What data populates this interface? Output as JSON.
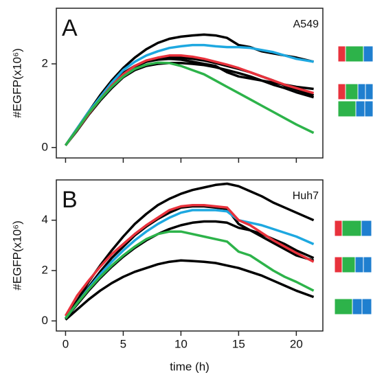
{
  "chart_data": [
    {
      "type": "line",
      "panel_label": "A",
      "title": "A549",
      "ylabel": "#EGFP(x10⁶)",
      "x": [
        0,
        1,
        2,
        3,
        4,
        5,
        6,
        7,
        8,
        9,
        10,
        11,
        12,
        13,
        14,
        15,
        16,
        17,
        18,
        19,
        20,
        21.5
      ],
      "xlim": [
        -0.8,
        22.3
      ],
      "ylim": [
        -0.25,
        3.33
      ],
      "xticks": [
        0,
        5,
        10,
        15,
        20
      ],
      "xtick_labels": false,
      "yticks": [
        0,
        2
      ],
      "series": [
        {
          "color": "#000000",
          "values": [
            0.05,
            0.45,
            0.85,
            1.25,
            1.6,
            1.9,
            2.15,
            2.35,
            2.5,
            2.6,
            2.65,
            2.68,
            2.7,
            2.68,
            2.62,
            2.45,
            2.4,
            2.3,
            2.25,
            2.2,
            2.15,
            2.05
          ]
        },
        {
          "color": "#000000",
          "values": [
            0.05,
            0.42,
            0.8,
            1.15,
            1.48,
            1.75,
            1.93,
            2.05,
            2.12,
            2.15,
            2.15,
            2.12,
            2.08,
            2.02,
            1.95,
            1.88,
            1.8,
            1.7,
            1.6,
            1.48,
            1.38,
            1.25
          ]
        },
        {
          "color": "#000000",
          "values": [
            0.05,
            0.45,
            0.85,
            1.2,
            1.52,
            1.78,
            1.95,
            2.05,
            2.1,
            2.12,
            2.1,
            2.05,
            2.0,
            1.95,
            1.8,
            1.7,
            1.65,
            1.6,
            1.55,
            1.5,
            1.45,
            1.4
          ]
        },
        {
          "color": "#000000",
          "values": [
            0.05,
            0.4,
            0.78,
            1.12,
            1.42,
            1.68,
            1.85,
            1.95,
            2.0,
            2.02,
            2.02,
            2.0,
            1.97,
            1.92,
            1.85,
            1.78,
            1.7,
            1.6,
            1.5,
            1.42,
            1.32,
            1.2
          ]
        },
        {
          "color": "#1ea8e0",
          "values": [
            0.05,
            0.45,
            0.85,
            1.2,
            1.55,
            1.85,
            2.05,
            2.2,
            2.3,
            2.38,
            2.42,
            2.45,
            2.45,
            2.42,
            2.4,
            2.4,
            2.38,
            2.33,
            2.28,
            2.2,
            2.12,
            2.05
          ]
        },
        {
          "color": "#e8323c",
          "values": [
            0.05,
            0.42,
            0.8,
            1.15,
            1.48,
            1.75,
            1.95,
            2.08,
            2.15,
            2.2,
            2.2,
            2.17,
            2.12,
            2.05,
            1.98,
            1.9,
            1.8,
            1.7,
            1.6,
            1.5,
            1.42,
            1.3
          ]
        },
        {
          "color": "#2db34a",
          "values": [
            0.05,
            0.43,
            0.82,
            1.15,
            1.45,
            1.7,
            1.88,
            1.98,
            2.03,
            2.02,
            1.95,
            1.85,
            1.75,
            1.6,
            1.45,
            1.3,
            1.15,
            1.0,
            0.85,
            0.7,
            0.55,
            0.35
          ]
        }
      ]
    },
    {
      "type": "line",
      "panel_label": "B",
      "title": "Huh7",
      "ylabel": "#EGFP(x10⁶)",
      "xlabel": "time (h)",
      "x": [
        0,
        1,
        2,
        3,
        4,
        5,
        6,
        7,
        8,
        9,
        10,
        11,
        12,
        13,
        14,
        15,
        16,
        17,
        18,
        19,
        20,
        21.5
      ],
      "xlim": [
        -0.8,
        22.3
      ],
      "ylim": [
        -0.4,
        5.6
      ],
      "xticks": [
        0,
        5,
        10,
        15,
        20
      ],
      "xtick_labels": true,
      "yticks": [
        0,
        2,
        4
      ],
      "series": [
        {
          "color": "#000000",
          "values": [
            0.1,
            0.8,
            1.55,
            2.2,
            2.8,
            3.35,
            3.85,
            4.25,
            4.6,
            4.85,
            5.05,
            5.2,
            5.3,
            5.4,
            5.45,
            5.35,
            5.15,
            4.95,
            4.7,
            4.5,
            4.3,
            4.0
          ]
        },
        {
          "color": "#000000",
          "values": [
            0.1,
            0.75,
            1.35,
            1.95,
            2.5,
            2.95,
            3.4,
            3.75,
            4.05,
            4.3,
            4.5,
            4.55,
            4.55,
            4.5,
            4.45,
            3.85,
            3.6,
            3.35,
            3.1,
            2.85,
            2.6,
            2.4
          ]
        },
        {
          "color": "#000000",
          "values": [
            0.1,
            0.65,
            1.2,
            1.7,
            2.15,
            2.55,
            2.9,
            3.2,
            3.45,
            3.65,
            3.8,
            3.9,
            3.95,
            3.95,
            3.9,
            3.7,
            3.6,
            3.45,
            3.25,
            3.05,
            2.8,
            2.5
          ]
        },
        {
          "color": "#000000",
          "values": [
            0.05,
            0.45,
            0.85,
            1.2,
            1.5,
            1.75,
            1.95,
            2.1,
            2.25,
            2.35,
            2.4,
            2.38,
            2.35,
            2.3,
            2.2,
            2.1,
            1.95,
            1.8,
            1.6,
            1.4,
            1.2,
            0.95
          ]
        },
        {
          "color": "#1ea8e0",
          "values": [
            0.1,
            0.7,
            1.3,
            1.85,
            2.35,
            2.8,
            3.2,
            3.55,
            3.85,
            4.1,
            4.3,
            4.4,
            4.4,
            4.4,
            4.35,
            4.0,
            3.9,
            3.8,
            3.65,
            3.5,
            3.35,
            3.05
          ]
        },
        {
          "color": "#e8323c",
          "values": [
            0.2,
            1.0,
            1.6,
            2.15,
            2.65,
            3.05,
            3.45,
            3.8,
            4.1,
            4.4,
            4.55,
            4.6,
            4.6,
            4.55,
            4.5,
            4.0,
            3.8,
            3.5,
            3.2,
            2.95,
            2.7,
            2.35
          ]
        },
        {
          "color": "#2db34a",
          "values": [
            0.1,
            0.7,
            1.25,
            1.75,
            2.2,
            2.6,
            2.95,
            3.25,
            3.45,
            3.55,
            3.55,
            3.45,
            3.35,
            3.25,
            3.15,
            2.75,
            2.6,
            2.3,
            2.0,
            1.75,
            1.55,
            1.2
          ]
        }
      ]
    }
  ]
}
